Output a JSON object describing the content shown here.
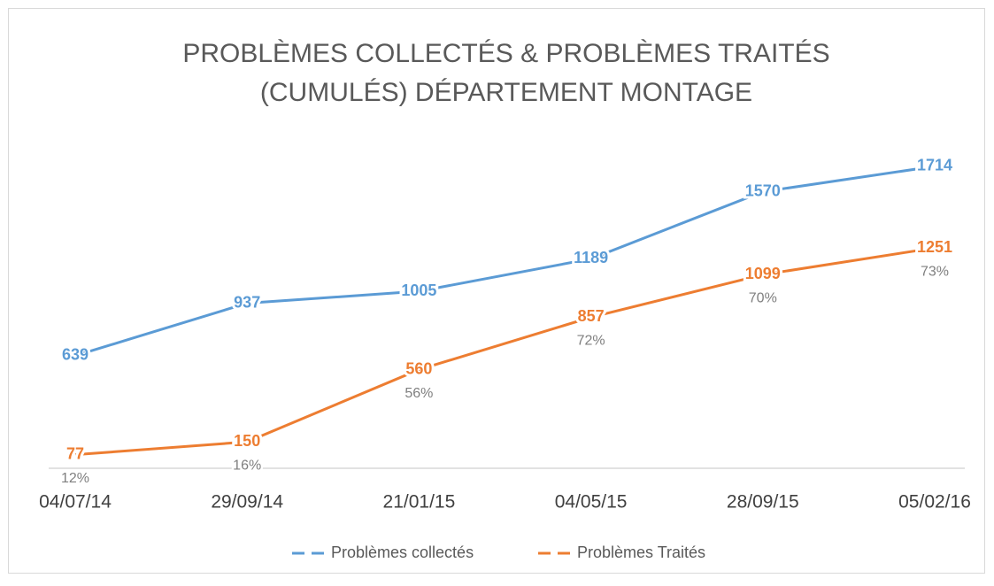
{
  "chart_data": {
    "type": "line",
    "title": "PROBLÈMES COLLECTÉS & PROBLÈMES TRAITÉS",
    "subtitle": "(CUMULÉS) DÉPARTEMENT MONTAGE",
    "categories": [
      "04/07/14",
      "29/09/14",
      "21/01/15",
      "04/05/15",
      "28/09/15",
      "05/02/16"
    ],
    "series": [
      {
        "name": "Problèmes collectés",
        "color": "#5b9bd5",
        "values": [
          639,
          937,
          1005,
          1189,
          1570,
          1714
        ]
      },
      {
        "name": "Problèmes Traités",
        "color": "#ed7d31",
        "values": [
          77,
          150,
          560,
          857,
          1099,
          1251
        ]
      }
    ],
    "percent_labels": [
      "12%",
      "16%",
      "56%",
      "72%",
      "70%",
      "73%"
    ],
    "ylim": [
      0,
      2000
    ],
    "legend": "bottom"
  }
}
